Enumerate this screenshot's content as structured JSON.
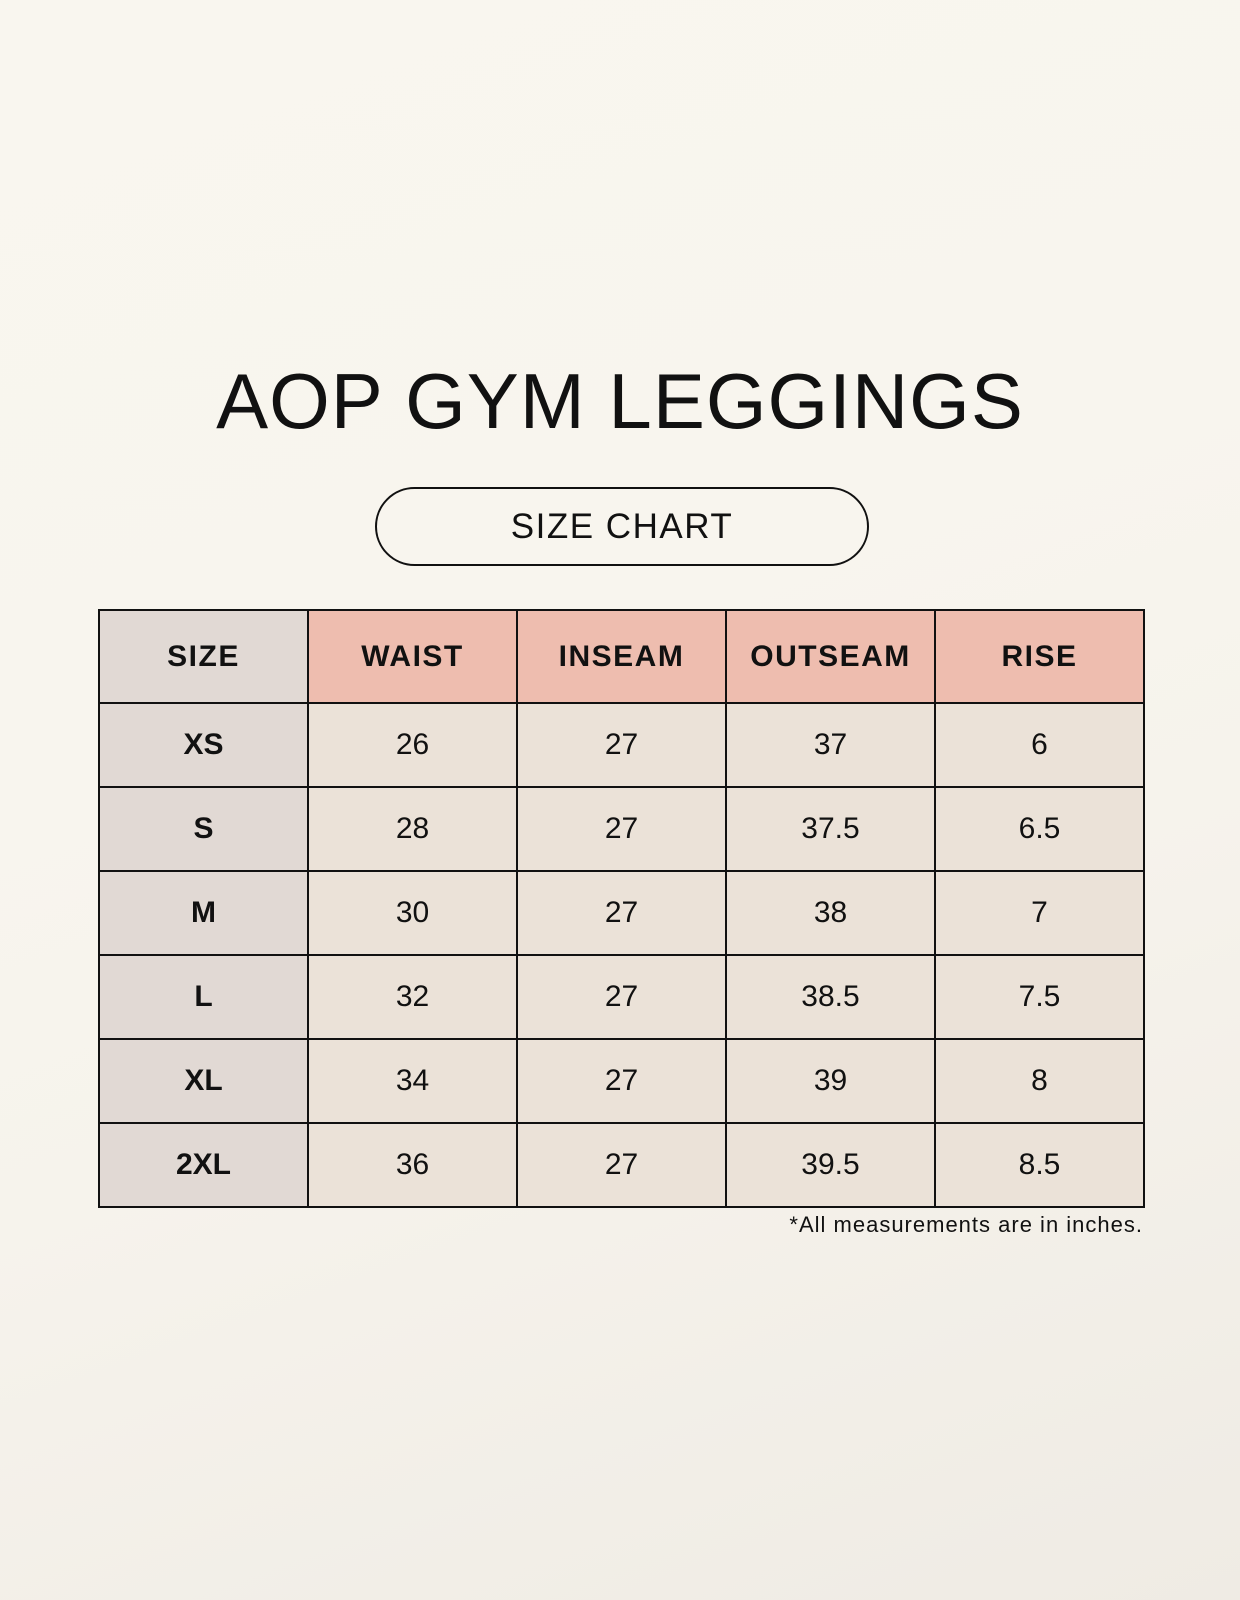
{
  "title": "AOP GYM LEGGINGS",
  "subtitle": "SIZE CHART",
  "colors": {
    "header": "#eebdaf",
    "size_column": "#e1d9d4",
    "cells": "#ebe2d8"
  },
  "table": {
    "headers": [
      "SIZE",
      "WAIST",
      "INSEAM",
      "OUTSEAM",
      "RISE"
    ],
    "rows": [
      [
        "XS",
        "26",
        "27",
        "37",
        "6"
      ],
      [
        "S",
        "28",
        "27",
        "37.5",
        "6.5"
      ],
      [
        "M",
        "30",
        "27",
        "38",
        "7"
      ],
      [
        "L",
        "32",
        "27",
        "38.5",
        "7.5"
      ],
      [
        "XL",
        "34",
        "27",
        "39",
        "8"
      ],
      [
        "2XL",
        "36",
        "27",
        "39.5",
        "8.5"
      ]
    ]
  },
  "footnote": "*All measurements are in inches."
}
